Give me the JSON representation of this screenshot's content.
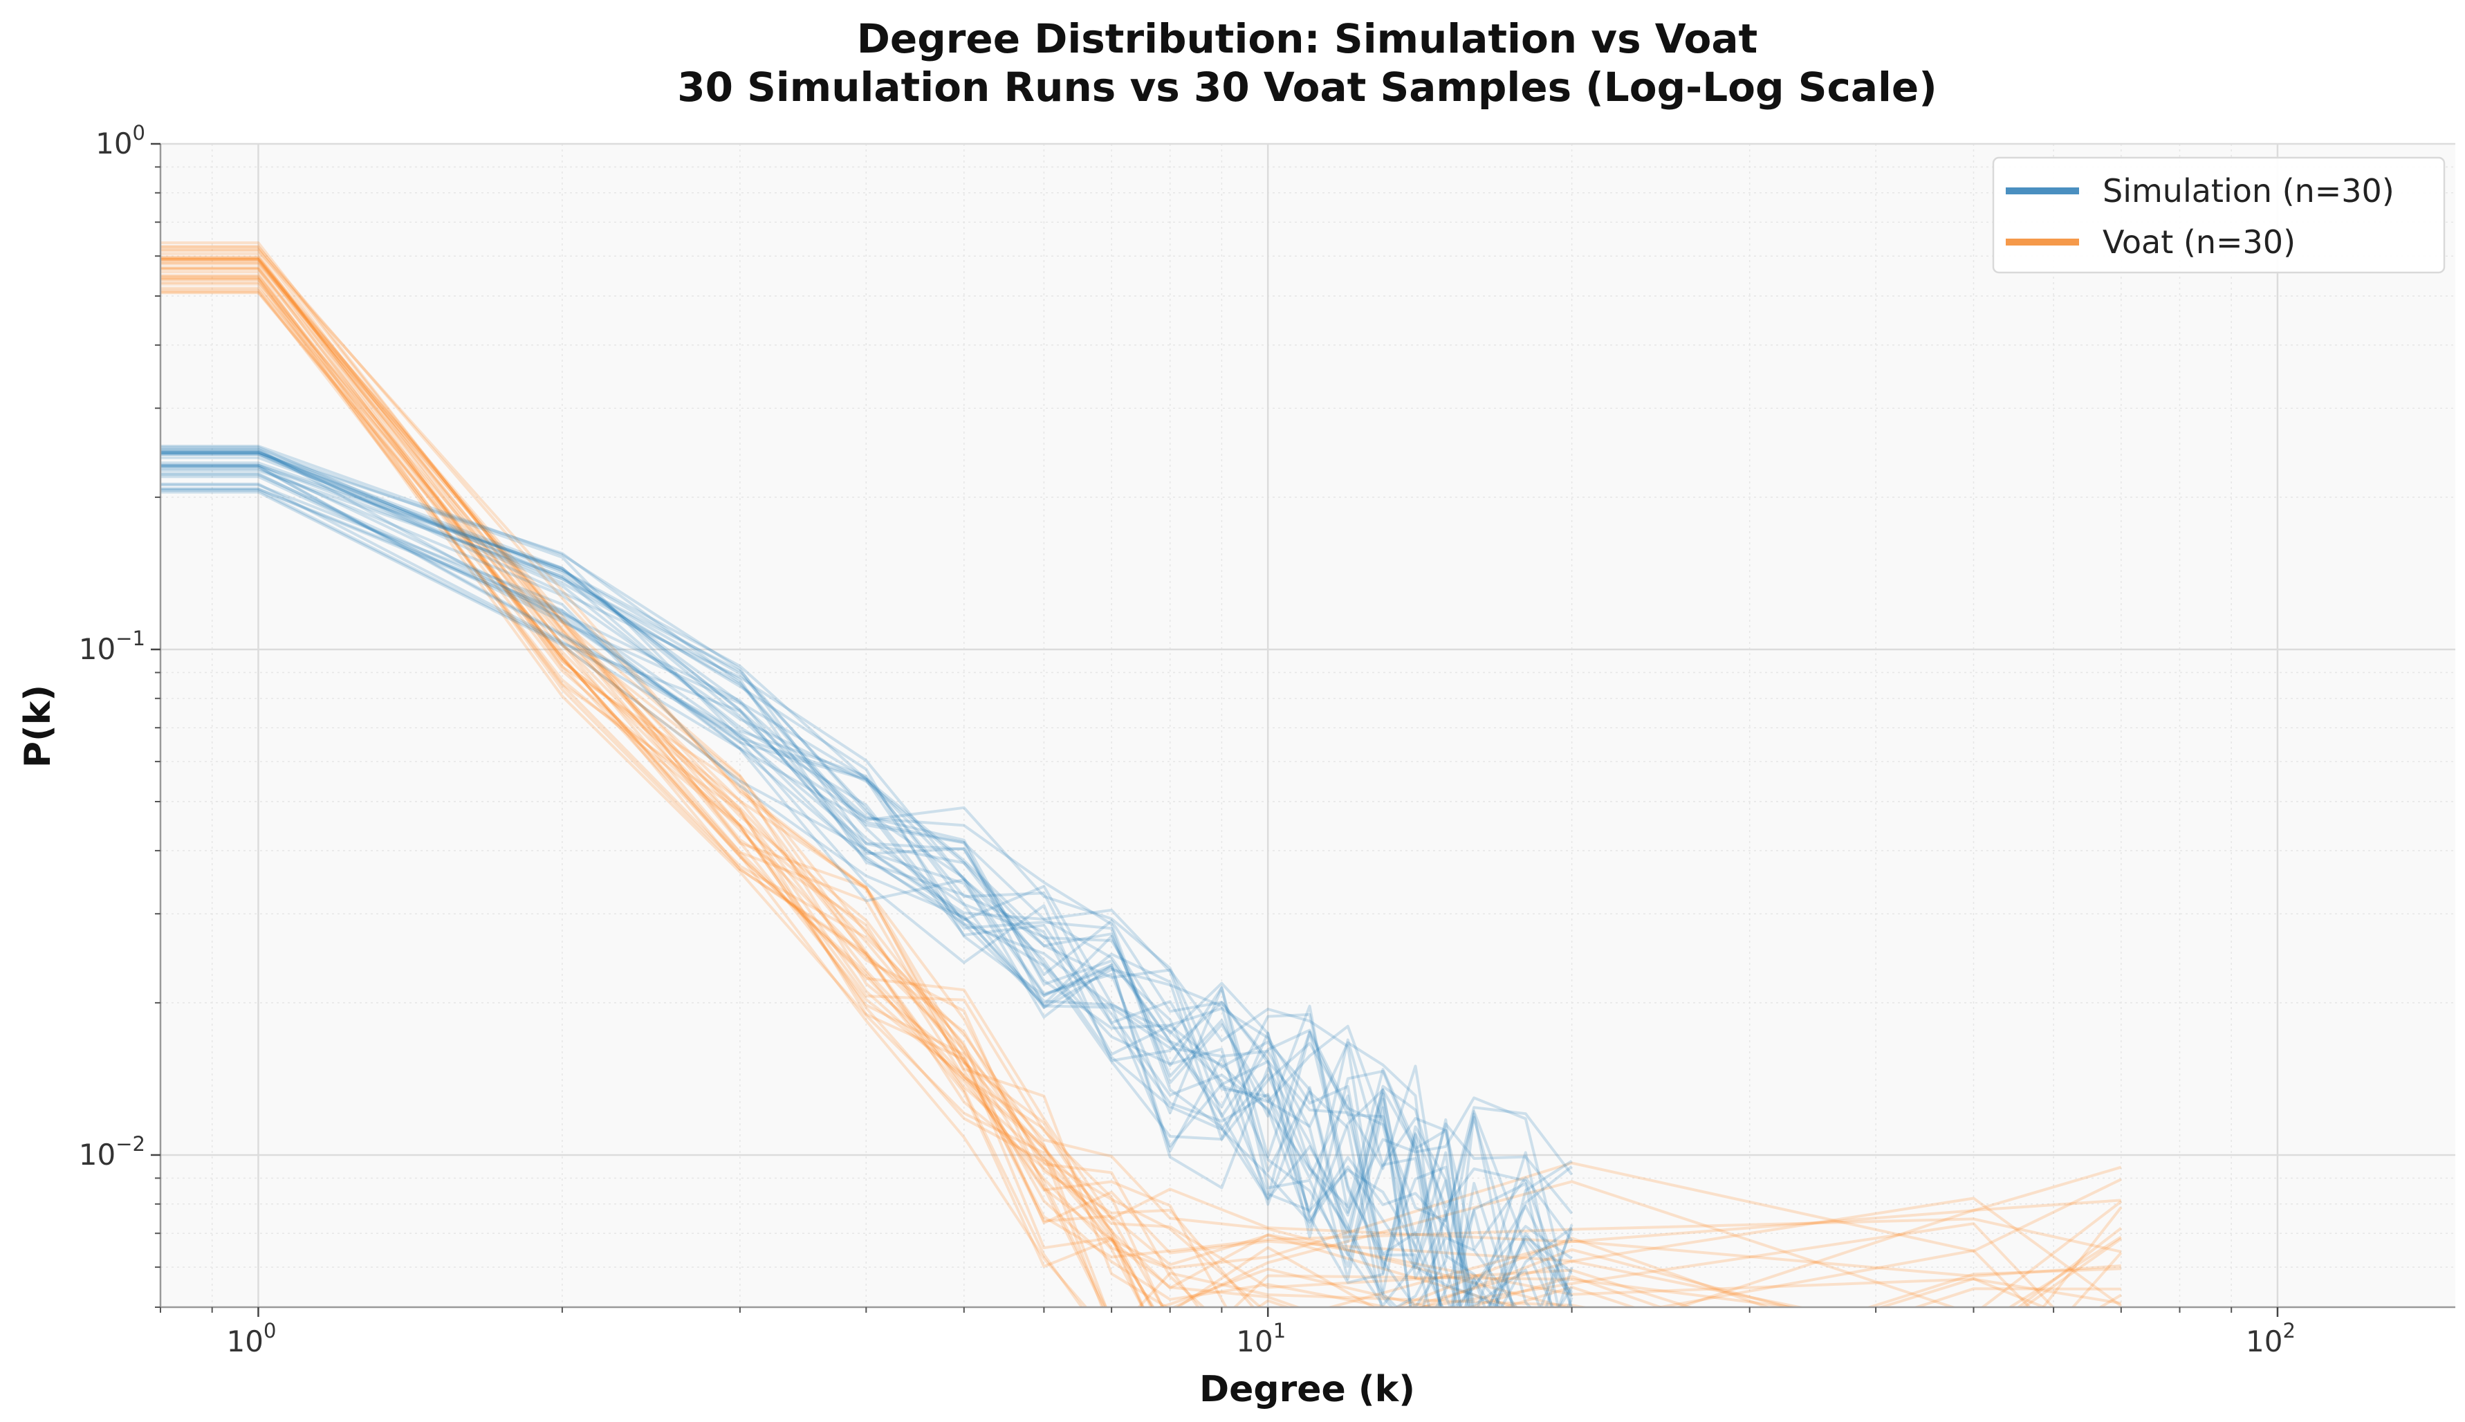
{
  "chart_data": {
    "type": "line",
    "scale": "log-log",
    "title": "Degree Distribution: Simulation vs Voat",
    "subtitle": "30 Simulation Runs vs 30 Voat Samples (Log-Log Scale)",
    "xlabel": "Degree (k)",
    "ylabel": "P(k)",
    "xlim": [
      0.8,
      150
    ],
    "ylim": [
      0.005,
      1
    ],
    "x_ticks": [
      {
        "value": 1,
        "base": "10",
        "exp": "0"
      },
      {
        "value": 10,
        "base": "10",
        "exp": "1"
      },
      {
        "value": 100,
        "base": "10",
        "exp": "2"
      }
    ],
    "y_ticks": [
      {
        "value": 1,
        "base": "10",
        "exp": "0"
      },
      {
        "value": 0.1,
        "base": "10",
        "exp": "−1"
      },
      {
        "value": 0.01,
        "base": "10",
        "exp": "−2"
      }
    ],
    "grid": true,
    "legend_position": "top-right",
    "series": [
      {
        "name": "Simulation (n=30)",
        "color": "#1f77b4",
        "legend_color": "#4a8fc0",
        "runs": 30,
        "representative": {
          "x": [
            1,
            2,
            3,
            4,
            5,
            6,
            7,
            8,
            9,
            10,
            11,
            12,
            13,
            14,
            15,
            16,
            18,
            20
          ],
          "y": [
            0.23,
            0.125,
            0.072,
            0.045,
            0.033,
            0.026,
            0.022,
            0.017,
            0.015,
            0.0125,
            0.011,
            0.0095,
            0.0085,
            0.0075,
            0.0068,
            0.0062,
            0.0058,
            0.0054
          ]
        }
      },
      {
        "name": "Voat (n=30)",
        "color": "#ff7f0e",
        "legend_color": "#f5994a",
        "runs": 30,
        "representative": {
          "x": [
            1,
            2,
            3,
            4,
            5,
            6,
            7,
            8,
            10,
            20,
            50,
            70
          ],
          "y": [
            0.57,
            0.1,
            0.045,
            0.025,
            0.015,
            0.009,
            0.0065,
            0.0055,
            0.0052,
            0.0051,
            0.0052,
            0.0053
          ]
        }
      }
    ]
  }
}
